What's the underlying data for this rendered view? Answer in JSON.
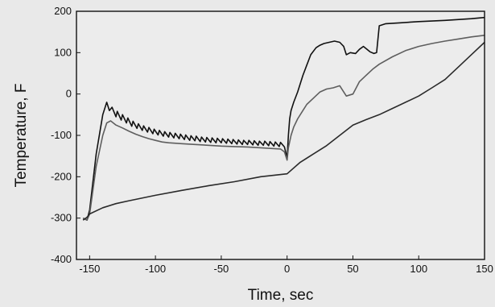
{
  "chart_data": {
    "type": "line",
    "title": "",
    "xlabel": "Time, sec",
    "ylabel": "Temperature, F",
    "xlim": [
      -160,
      150
    ],
    "ylim": [
      -400,
      200
    ],
    "xticks": [
      -150,
      -100,
      -50,
      0,
      50,
      100,
      150
    ],
    "yticks": [
      -400,
      -300,
      -200,
      -100,
      0,
      100,
      200
    ],
    "grid": false,
    "line_color": "#222222",
    "series": [
      {
        "color": "#111111",
        "x": [
          -155,
          -152,
          -150,
          -145,
          -140,
          -137,
          -135,
          -133,
          -130,
          -129,
          -126,
          -125,
          -122,
          -121,
          -118,
          -117,
          -114,
          -113,
          -110,
          -109,
          -106,
          -105,
          -102,
          -101,
          -98,
          -97,
          -94,
          -93,
          -90,
          -89,
          -86,
          -85,
          -82,
          -81,
          -78,
          -77,
          -74,
          -73,
          -70,
          -69,
          -66,
          -65,
          -62,
          -61,
          -58,
          -57,
          -54,
          -53,
          -50,
          -49,
          -46,
          -45,
          -42,
          -41,
          -38,
          -37,
          -34,
          -33,
          -30,
          -29,
          -26,
          -25,
          -22,
          -21,
          -18,
          -17,
          -14,
          -13,
          -10,
          -9,
          -6,
          -5,
          -2,
          0,
          1,
          2,
          3,
          5,
          8,
          12,
          15,
          18,
          22,
          25,
          28,
          32,
          36,
          40,
          43,
          45,
          48,
          52,
          55,
          58,
          60,
          63,
          66,
          68,
          70,
          75,
          85,
          100,
          120,
          140,
          150
        ],
        "y": [
          -300,
          -305,
          -280,
          -145,
          -50,
          -20,
          -40,
          -32,
          -55,
          -42,
          -63,
          -50,
          -70,
          -58,
          -78,
          -66,
          -83,
          -72,
          -88,
          -77,
          -92,
          -81,
          -96,
          -85,
          -99,
          -88,
          -102,
          -91,
          -104,
          -93,
          -106,
          -95,
          -108,
          -97,
          -110,
          -99,
          -112,
          -101,
          -113,
          -102,
          -115,
          -104,
          -116,
          -105,
          -117,
          -106,
          -118,
          -107,
          -118,
          -108,
          -119,
          -109,
          -120,
          -110,
          -121,
          -111,
          -122,
          -112,
          -122,
          -112,
          -123,
          -113,
          -124,
          -114,
          -124,
          -114,
          -125,
          -115,
          -126,
          -116,
          -127,
          -117,
          -128,
          -155,
          -100,
          -60,
          -40,
          -20,
          5,
          45,
          70,
          95,
          112,
          118,
          122,
          125,
          128,
          125,
          115,
          95,
          100,
          98,
          108,
          115,
          110,
          102,
          98,
          100,
          165,
          170,
          172,
          175,
          178,
          182,
          185
        ]
      },
      {
        "color": "#5e5e5e",
        "x": [
          -155,
          -152,
          -150,
          -145,
          -140,
          -137,
          -134,
          -130,
          -125,
          -120,
          -115,
          -110,
          -105,
          -100,
          -95,
          -90,
          -80,
          -70,
          -60,
          -50,
          -40,
          -30,
          -20,
          -10,
          -5,
          -2,
          0,
          1,
          3,
          5,
          8,
          12,
          15,
          20,
          25,
          30,
          35,
          40,
          43,
          45,
          50,
          55,
          60,
          65,
          70,
          80,
          90,
          100,
          110,
          120,
          130,
          140,
          150
        ],
        "y": [
          -300,
          -305,
          -290,
          -175,
          -100,
          -70,
          -65,
          -75,
          -82,
          -90,
          -97,
          -103,
          -108,
          -112,
          -116,
          -118,
          -120,
          -122,
          -124,
          -126,
          -127,
          -128,
          -130,
          -132,
          -133,
          -140,
          -160,
          -130,
          -100,
          -80,
          -60,
          -40,
          -25,
          -10,
          5,
          12,
          15,
          20,
          5,
          -5,
          0,
          30,
          45,
          60,
          72,
          90,
          105,
          115,
          122,
          128,
          133,
          138,
          142
        ]
      },
      {
        "color": "#2a2a2a",
        "x": [
          -155,
          -152,
          -150,
          -140,
          -130,
          -120,
          -100,
          -80,
          -60,
          -40,
          -20,
          0,
          10,
          20,
          30,
          40,
          50,
          60,
          70,
          80,
          90,
          100,
          110,
          120,
          130,
          140,
          150
        ],
        "y": [
          -305,
          -298,
          -290,
          -275,
          -265,
          -258,
          -245,
          -233,
          -222,
          -212,
          -200,
          -193,
          -165,
          -145,
          -125,
          -100,
          -75,
          -62,
          -50,
          -35,
          -20,
          -5,
          15,
          35,
          65,
          95,
          125
        ]
      }
    ]
  }
}
